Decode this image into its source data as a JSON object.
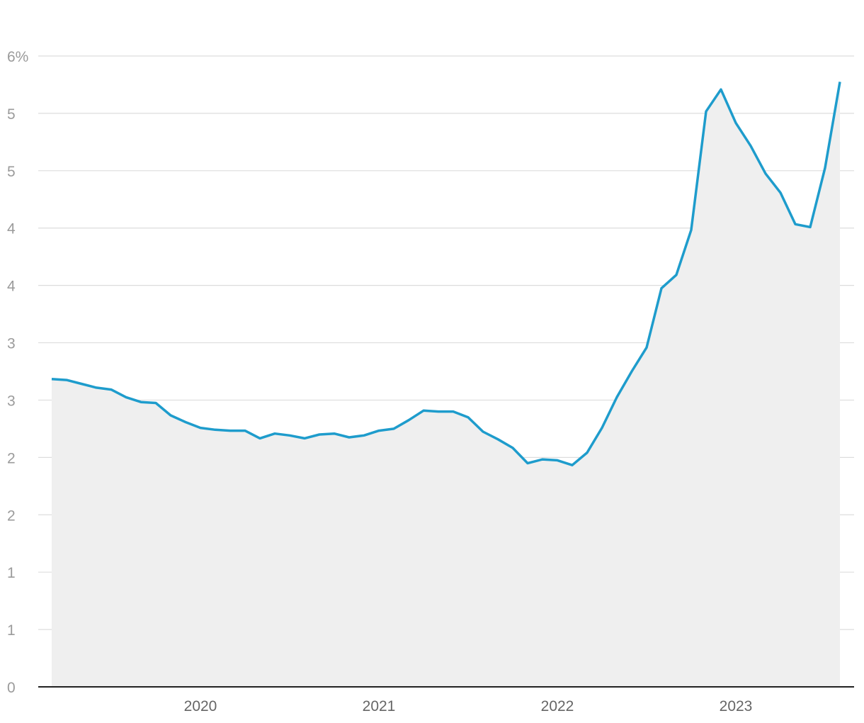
{
  "chart_data": {
    "type": "area",
    "title": "",
    "xlabel": "",
    "ylabel": "",
    "colors": {
      "line": "#1e9ccc",
      "area": "#efefef",
      "grid": "#dddddd",
      "axis": "#222222"
    },
    "grid": true,
    "legend": "none",
    "x_range": [
      "2019-03",
      "2023-08"
    ],
    "ylim": [
      0,
      6.6
    ],
    "y_ticks": [
      {
        "value": 0,
        "label": "0"
      },
      {
        "value": 0.6,
        "label": "1"
      },
      {
        "value": 1.2,
        "label": "1"
      },
      {
        "value": 1.8,
        "label": "2"
      },
      {
        "value": 2.4,
        "label": "2"
      },
      {
        "value": 3.0,
        "label": "3"
      },
      {
        "value": 3.6,
        "label": "3"
      },
      {
        "value": 4.2,
        "label": "4"
      },
      {
        "value": 4.8,
        "label": "4"
      },
      {
        "value": 5.4,
        "label": "5"
      },
      {
        "value": 6.0,
        "label": "5"
      },
      {
        "value": 6.6,
        "label": "6%"
      }
    ],
    "x_ticks": [
      {
        "date": "2020-01",
        "label": "2020"
      },
      {
        "date": "2021-01",
        "label": "2021"
      },
      {
        "date": "2022-01",
        "label": "2022"
      },
      {
        "date": "2023-01",
        "label": "2023"
      }
    ],
    "series": [
      {
        "x": [
          "2019-03",
          "2019-04",
          "2019-05",
          "2019-06",
          "2019-07",
          "2019-08",
          "2019-09",
          "2019-10",
          "2019-11",
          "2019-12",
          "2020-01",
          "2020-02",
          "2020-03",
          "2020-04",
          "2020-05",
          "2020-06",
          "2020-07",
          "2020-08",
          "2020-09",
          "2020-10",
          "2020-11",
          "2020-12",
          "2021-01",
          "2021-02",
          "2021-03",
          "2021-04",
          "2021-05",
          "2021-06",
          "2021-07",
          "2021-08",
          "2021-09",
          "2021-10",
          "2021-11",
          "2021-12",
          "2022-01",
          "2022-02",
          "2022-03",
          "2022-04",
          "2022-05",
          "2022-06",
          "2022-07",
          "2022-08",
          "2022-09",
          "2022-10",
          "2022-11",
          "2022-12",
          "2023-01",
          "2023-02",
          "2023-03",
          "2023-04",
          "2023-05",
          "2023-06",
          "2023-07",
          "2023-08"
        ],
        "values": [
          3.22,
          3.21,
          3.17,
          3.13,
          3.11,
          3.03,
          2.98,
          2.97,
          2.84,
          2.77,
          2.71,
          2.69,
          2.68,
          2.68,
          2.6,
          2.65,
          2.63,
          2.6,
          2.64,
          2.65,
          2.61,
          2.63,
          2.68,
          2.7,
          2.79,
          2.89,
          2.88,
          2.88,
          2.82,
          2.67,
          2.59,
          2.5,
          2.34,
          2.38,
          2.37,
          2.32,
          2.45,
          2.71,
          3.03,
          3.3,
          3.55,
          4.17,
          4.31,
          4.78,
          6.02,
          6.25,
          5.9,
          5.66,
          5.37,
          5.17,
          4.84,
          4.81,
          5.43,
          6.33
        ]
      }
    ]
  }
}
